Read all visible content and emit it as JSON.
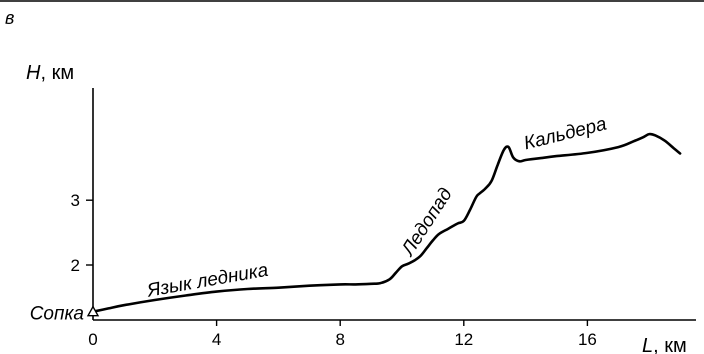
{
  "panel_label": "в",
  "chart_data": {
    "type": "line",
    "title": "",
    "xlabel": {
      "var": "L",
      "unit": ", км"
    },
    "ylabel": {
      "var": "H",
      "unit": ", км"
    },
    "xlim": [
      0,
      19
    ],
    "ylim": [
      1.0,
      4.0
    ],
    "x_ticks": [
      0,
      4,
      8,
      12,
      16
    ],
    "y_ticks": [
      2,
      3
    ],
    "grid": false,
    "legend": "none",
    "series": [
      {
        "x": [
          0,
          0.5,
          1,
          2,
          3,
          4,
          5,
          6,
          7,
          8,
          8.5,
          9,
          9.3,
          9.6,
          9.8,
          10.0,
          10.2,
          10.4,
          10.6,
          10.8,
          11.0,
          11.2,
          11.5,
          11.8,
          12.0,
          12.2,
          12.4,
          12.5,
          12.7,
          12.9,
          13.1,
          13.3,
          13.45,
          13.6,
          13.8,
          14.0,
          14.5,
          15,
          16,
          17,
          17.5,
          17.8,
          18.0,
          18.2,
          18.5,
          18.8,
          19.0
        ],
        "y": [
          1.28,
          1.33,
          1.38,
          1.46,
          1.53,
          1.59,
          1.63,
          1.65,
          1.68,
          1.7,
          1.7,
          1.71,
          1.72,
          1.78,
          1.88,
          1.98,
          2.02,
          2.07,
          2.14,
          2.26,
          2.38,
          2.48,
          2.56,
          2.64,
          2.68,
          2.85,
          3.05,
          3.1,
          3.18,
          3.3,
          3.55,
          3.78,
          3.82,
          3.66,
          3.6,
          3.62,
          3.65,
          3.68,
          3.73,
          3.82,
          3.91,
          3.97,
          4.02,
          4.0,
          3.92,
          3.8,
          3.72
        ]
      }
    ],
    "markers": [
      {
        "label": "Сопка",
        "x": 0,
        "y": 1.28,
        "shape": "triangle-open"
      }
    ],
    "annotations": [
      {
        "text": "Язык ледника",
        "x": 1.8,
        "y": 1.48
      },
      {
        "text": "Ледопад",
        "x": 10.3,
        "y": 2.05
      },
      {
        "text": "Кальдера",
        "x": 14.0,
        "y": 3.72
      }
    ]
  }
}
